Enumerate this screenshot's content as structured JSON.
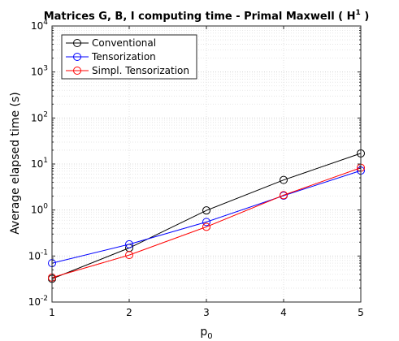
{
  "chart_data": {
    "type": "line",
    "title_main": "Matrices G, B, I computing time - Primal Maxwell ( H",
    "title_sup": "1",
    "title_close": ")",
    "xlabel_main": "p",
    "xlabel_sub": "0",
    "ylabel": "Average elapsed time (s)",
    "x": [
      1,
      2,
      3,
      4,
      5
    ],
    "xlim": [
      1,
      5
    ],
    "ylim": [
      0.01,
      10000
    ],
    "yscale": "log",
    "grid": true,
    "legend_position": "top-left",
    "x_ticks": [
      "1",
      "2",
      "3",
      "4",
      "5"
    ],
    "y_ticks": [
      {
        "base": "10",
        "exp": "-2",
        "value": 0.01
      },
      {
        "base": "10",
        "exp": "-1",
        "value": 0.1
      },
      {
        "base": "10",
        "exp": "0",
        "value": 1
      },
      {
        "base": "10",
        "exp": "1",
        "value": 10
      },
      {
        "base": "10",
        "exp": "2",
        "value": 100
      },
      {
        "base": "10",
        "exp": "3",
        "value": 1000
      },
      {
        "base": "10",
        "exp": "4",
        "value": 10000
      }
    ],
    "series": [
      {
        "name": "Conventional",
        "color": "#000000",
        "values": [
          0.032,
          0.15,
          0.98,
          4.5,
          17.0
        ]
      },
      {
        "name": "Tensorization",
        "color": "#0000ff",
        "values": [
          0.07,
          0.18,
          0.55,
          2.05,
          7.2
        ]
      },
      {
        "name": "Simpl. Tensorization",
        "color": "#ff0000",
        "values": [
          0.034,
          0.105,
          0.43,
          2.1,
          8.3
        ]
      }
    ]
  }
}
